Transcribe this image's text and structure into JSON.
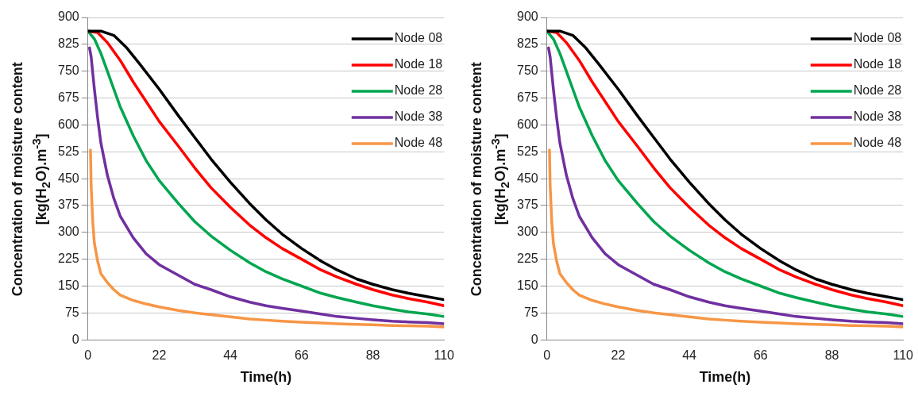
{
  "chart_data": [
    {
      "type": "line",
      "xlabel": "Time(h)",
      "ylabel": "Concentration of moisture content [kg(H$_{2}$O).m$^{-3}$]",
      "xlim": [
        0,
        110
      ],
      "xticks": [
        0,
        22,
        44,
        66,
        88,
        110
      ],
      "ylim": [
        0,
        900
      ],
      "yticks": [
        0,
        75,
        150,
        225,
        300,
        375,
        450,
        525,
        600,
        675,
        750,
        825,
        900
      ],
      "grid": "y",
      "legend": "top right",
      "marker": "none",
      "line_style": "solid",
      "series": [
        {
          "name": "Node 08",
          "color": "#000000",
          "x": [
            0,
            4,
            8,
            12,
            16,
            22,
            28,
            33,
            38,
            44,
            50,
            55,
            60,
            66,
            72,
            77,
            83,
            88,
            94,
            99,
            105,
            110
          ],
          "values": [
            862,
            862,
            850,
            815,
            770,
            700,
            625,
            565,
            505,
            440,
            380,
            335,
            295,
            255,
            220,
            195,
            170,
            155,
            140,
            130,
            120,
            112
          ]
        },
        {
          "name": "Node 18",
          "color": "#ff0000",
          "x": [
            0,
            3,
            6,
            10,
            14,
            18,
            22,
            28,
            33,
            38,
            44,
            50,
            55,
            60,
            66,
            72,
            77,
            83,
            88,
            94,
            99,
            105,
            110
          ],
          "values": [
            862,
            858,
            830,
            780,
            720,
            665,
            610,
            540,
            480,
            425,
            370,
            320,
            285,
            255,
            225,
            195,
            175,
            155,
            140,
            125,
            115,
            105,
            95
          ]
        },
        {
          "name": "Node 28",
          "color": "#00a650",
          "x": [
            0,
            2,
            4,
            6,
            8,
            10,
            14,
            18,
            22,
            28,
            33,
            38,
            44,
            50,
            55,
            60,
            66,
            72,
            77,
            83,
            88,
            94,
            99,
            105,
            110
          ],
          "values": [
            862,
            840,
            800,
            750,
            700,
            650,
            570,
            500,
            445,
            380,
            330,
            290,
            250,
            215,
            190,
            170,
            150,
            130,
            118,
            105,
            95,
            85,
            78,
            72,
            65
          ]
        },
        {
          "name": "Node 38",
          "color": "#7030a0",
          "x": [
            0.5,
            1,
            2,
            3,
            4,
            6,
            8,
            10,
            14,
            18,
            22,
            28,
            33,
            38,
            44,
            50,
            55,
            60,
            66,
            72,
            77,
            83,
            88,
            94,
            99,
            105,
            110
          ],
          "values": [
            815,
            790,
            700,
            620,
            550,
            460,
            395,
            345,
            285,
            240,
            210,
            180,
            155,
            140,
            120,
            105,
            95,
            88,
            80,
            72,
            65,
            60,
            56,
            52,
            50,
            48,
            45
          ]
        },
        {
          "name": "Node 48",
          "color": "#f79646",
          "x": [
            0.8,
            1,
            1.5,
            2,
            3,
            4,
            6,
            8,
            10,
            14,
            18,
            22,
            28,
            33,
            38,
            44,
            50,
            55,
            60,
            66,
            72,
            77,
            83,
            88,
            94,
            99,
            105,
            110
          ],
          "values": [
            530,
            430,
            330,
            270,
            220,
            185,
            160,
            140,
            125,
            110,
            100,
            92,
            82,
            75,
            70,
            64,
            58,
            55,
            52,
            49,
            47,
            45,
            43,
            42,
            40,
            39,
            38,
            36
          ]
        }
      ]
    },
    {
      "type": "line",
      "xlabel": "Time(h)",
      "ylabel": "Concentration of moisture content [kg(H$_{2}$O).m$^{-3}$]",
      "xlim": [
        0,
        110
      ],
      "xticks": [
        0,
        22,
        44,
        66,
        88,
        110
      ],
      "ylim": [
        0,
        900
      ],
      "yticks": [
        0,
        75,
        150,
        225,
        300,
        375,
        450,
        525,
        600,
        675,
        750,
        825,
        900
      ],
      "grid": "y",
      "legend": "top right",
      "marker": "none",
      "line_style": "solid",
      "series": [
        {
          "name": "Node 08",
          "color": "#000000",
          "x": [
            0,
            4,
            8,
            12,
            16,
            22,
            28,
            33,
            38,
            44,
            50,
            55,
            60,
            66,
            72,
            77,
            83,
            88,
            94,
            99,
            105,
            110
          ],
          "values": [
            862,
            862,
            850,
            815,
            770,
            700,
            625,
            565,
            505,
            440,
            380,
            335,
            295,
            255,
            220,
            195,
            170,
            155,
            140,
            130,
            120,
            112
          ]
        },
        {
          "name": "Node 18",
          "color": "#ff0000",
          "x": [
            0,
            3,
            6,
            10,
            14,
            18,
            22,
            28,
            33,
            38,
            44,
            50,
            55,
            60,
            66,
            72,
            77,
            83,
            88,
            94,
            99,
            105,
            110
          ],
          "values": [
            862,
            858,
            830,
            780,
            720,
            665,
            610,
            540,
            480,
            425,
            370,
            320,
            285,
            255,
            225,
            195,
            175,
            155,
            140,
            125,
            115,
            105,
            95
          ]
        },
        {
          "name": "Node 28",
          "color": "#00a650",
          "x": [
            0,
            2,
            4,
            6,
            8,
            10,
            14,
            18,
            22,
            28,
            33,
            38,
            44,
            50,
            55,
            60,
            66,
            72,
            77,
            83,
            88,
            94,
            99,
            105,
            110
          ],
          "values": [
            862,
            840,
            800,
            750,
            700,
            650,
            570,
            500,
            445,
            380,
            330,
            290,
            250,
            215,
            190,
            170,
            150,
            130,
            118,
            105,
            95,
            85,
            78,
            72,
            65
          ]
        },
        {
          "name": "Node 38",
          "color": "#7030a0",
          "x": [
            0.5,
            1,
            2,
            3,
            4,
            6,
            8,
            10,
            14,
            18,
            22,
            28,
            33,
            38,
            44,
            50,
            55,
            60,
            66,
            72,
            77,
            83,
            88,
            94,
            99,
            105,
            110
          ],
          "values": [
            815,
            790,
            700,
            620,
            550,
            460,
            395,
            345,
            285,
            240,
            210,
            180,
            155,
            140,
            120,
            105,
            95,
            88,
            80,
            72,
            65,
            60,
            56,
            52,
            50,
            48,
            45
          ]
        },
        {
          "name": "Node 48",
          "color": "#f79646",
          "x": [
            0.8,
            1,
            1.5,
            2,
            3,
            4,
            6,
            8,
            10,
            14,
            18,
            22,
            28,
            33,
            38,
            44,
            50,
            55,
            60,
            66,
            72,
            77,
            83,
            88,
            94,
            99,
            105,
            110
          ],
          "values": [
            530,
            430,
            330,
            270,
            220,
            185,
            160,
            140,
            125,
            110,
            100,
            92,
            82,
            75,
            70,
            64,
            58,
            55,
            52,
            49,
            47,
            45,
            43,
            42,
            40,
            39,
            38,
            36
          ]
        }
      ]
    }
  ]
}
